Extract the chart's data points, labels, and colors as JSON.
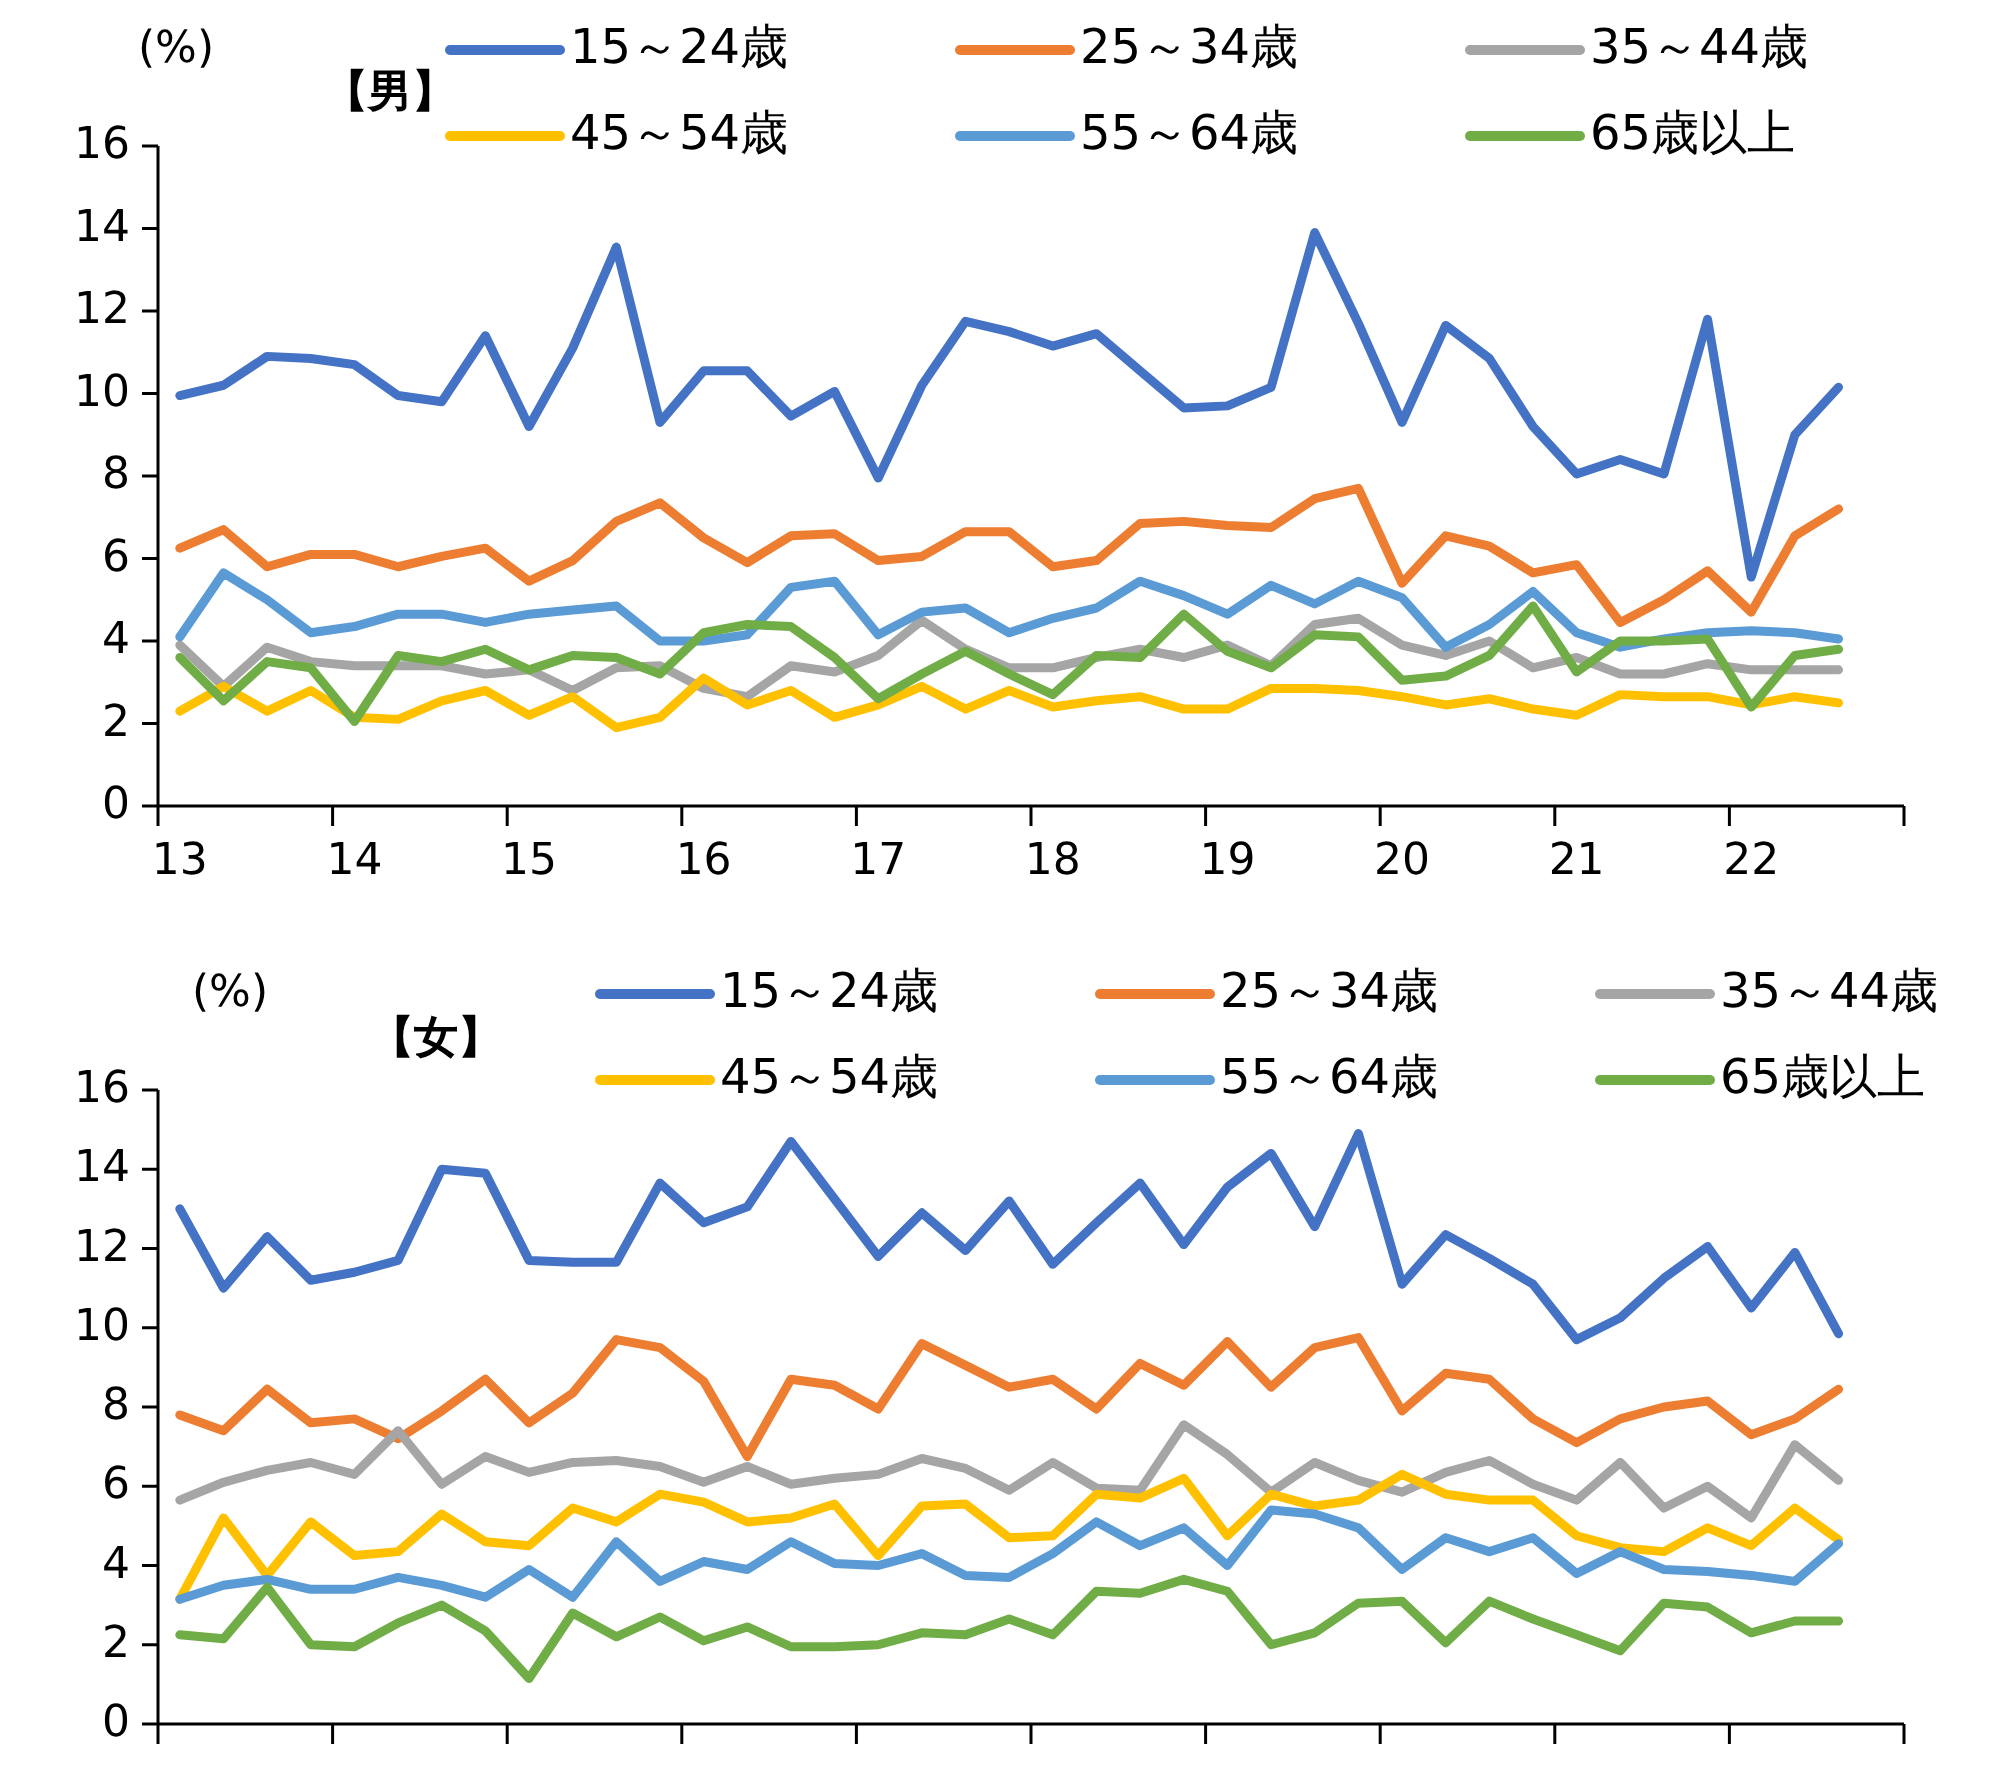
{
  "chart_data": [
    {
      "type": "line",
      "title": "【男】",
      "ylabel": "(%)",
      "legend": "top",
      "grid": false,
      "marker": "none",
      "line_style": "solid",
      "categories": [
        "13",
        null,
        null,
        null,
        "14",
        null,
        null,
        null,
        "15",
        null,
        null,
        null,
        "16",
        null,
        null,
        null,
        "17",
        null,
        null,
        null,
        "18",
        null,
        null,
        null,
        "19",
        null,
        null,
        null,
        "20",
        null,
        null,
        null,
        "21",
        null,
        null,
        null,
        "22",
        null,
        null,
        null
      ],
      "ylim": [
        0,
        16
      ],
      "yticks": [
        0,
        2,
        4,
        6,
        8,
        10,
        12,
        14,
        16
      ],
      "series": [
        {
          "name": "15～24歳",
          "color": "#4472c4",
          "values": [
            9.95,
            10.2,
            10.9,
            10.85,
            10.7,
            9.95,
            9.8,
            11.4,
            9.2,
            11.1,
            13.55,
            9.3,
            10.55,
            10.55,
            9.45,
            10.05,
            7.95,
            10.2,
            11.75,
            11.5,
            11.15,
            11.45,
            10.55,
            9.65,
            9.7,
            10.15,
            13.9,
            11.7,
            9.3,
            11.65,
            10.85,
            9.2,
            8.05,
            8.4,
            8.05,
            11.8,
            5.55,
            9.0,
            10.15,
            null
          ]
        },
        {
          "name": "25～34歳",
          "color": "#ed7d31",
          "values": [
            6.25,
            6.7,
            5.8,
            6.1,
            6.1,
            5.8,
            6.05,
            6.25,
            5.45,
            5.95,
            6.9,
            7.35,
            6.5,
            5.9,
            6.55,
            6.6,
            5.95,
            6.05,
            6.65,
            6.65,
            5.8,
            5.95,
            6.85,
            6.9,
            6.8,
            6.75,
            7.45,
            7.7,
            5.4,
            6.55,
            6.3,
            5.65,
            5.85,
            4.45,
            5.0,
            5.7,
            4.7,
            6.55,
            7.2,
            null
          ]
        },
        {
          "name": "35～44歳",
          "color": "#a5a5a5",
          "values": [
            3.9,
            2.9,
            3.85,
            3.5,
            3.4,
            3.4,
            3.4,
            3.2,
            3.3,
            2.8,
            3.35,
            3.4,
            2.85,
            2.65,
            3.4,
            3.25,
            3.65,
            4.5,
            3.8,
            3.35,
            3.35,
            3.6,
            3.8,
            3.6,
            3.9,
            3.4,
            4.4,
            4.55,
            3.9,
            3.65,
            4.0,
            3.35,
            3.6,
            3.2,
            3.2,
            3.45,
            3.3,
            3.3,
            3.3,
            null
          ]
        },
        {
          "name": "45～54歳",
          "color": "#ffc000",
          "values": [
            2.3,
            2.9,
            2.3,
            2.8,
            2.15,
            2.1,
            2.55,
            2.8,
            2.2,
            2.65,
            1.9,
            2.15,
            3.1,
            2.45,
            2.8,
            2.15,
            2.45,
            2.9,
            2.35,
            2.8,
            2.4,
            2.55,
            2.65,
            2.35,
            2.35,
            2.85,
            2.85,
            2.8,
            2.65,
            2.45,
            2.6,
            2.35,
            2.2,
            2.7,
            2.65,
            2.65,
            2.45,
            2.65,
            2.5,
            null
          ]
        },
        {
          "name": "55～64歳",
          "color": "#5b9bd5",
          "values": [
            4.1,
            5.65,
            5.0,
            4.2,
            4.35,
            4.65,
            4.65,
            4.45,
            4.65,
            4.75,
            4.85,
            4.0,
            4.0,
            4.15,
            5.3,
            5.45,
            4.15,
            4.7,
            4.8,
            4.2,
            4.55,
            4.8,
            5.45,
            5.1,
            4.65,
            5.35,
            4.9,
            5.45,
            5.05,
            3.85,
            4.4,
            5.2,
            4.2,
            3.85,
            4.05,
            4.2,
            4.25,
            4.2,
            4.05,
            null
          ]
        },
        {
          "name": "65歳以上",
          "color": "#70ad47",
          "values": [
            3.6,
            2.55,
            3.5,
            3.35,
            2.05,
            3.65,
            3.5,
            3.8,
            3.3,
            3.65,
            3.6,
            3.2,
            4.2,
            4.4,
            4.35,
            3.6,
            2.6,
            3.2,
            3.75,
            3.2,
            2.7,
            3.65,
            3.6,
            4.65,
            3.75,
            3.35,
            4.15,
            4.1,
            3.05,
            3.15,
            3.65,
            4.85,
            3.25,
            4.0,
            4.0,
            4.05,
            2.4,
            3.65,
            3.8,
            null
          ]
        }
      ]
    },
    {
      "type": "line",
      "title": "【女】",
      "ylabel": "(%)",
      "legend": "top",
      "grid": false,
      "marker": "none",
      "line_style": "solid",
      "tick_labels": "y",
      "categories": [
        null,
        null,
        null,
        null,
        null,
        null,
        null,
        null,
        null,
        null,
        null,
        null,
        null,
        null,
        null,
        null,
        null,
        null,
        null,
        null,
        null,
        null,
        null,
        null,
        null,
        null,
        null,
        null,
        null,
        null,
        null,
        null,
        null,
        null,
        null,
        null,
        null,
        null,
        null,
        null
      ],
      "ylim": [
        0,
        16
      ],
      "yticks": [
        0,
        2,
        4,
        6,
        8,
        10,
        12,
        14,
        16
      ],
      "series": [
        {
          "name": "15～24歳",
          "color": "#4472c4",
          "values": [
            13.0,
            11.0,
            12.3,
            11.2,
            11.4,
            11.7,
            14.0,
            13.9,
            11.7,
            11.65,
            11.65,
            13.65,
            12.65,
            13.05,
            14.7,
            13.25,
            11.8,
            12.9,
            11.95,
            13.2,
            11.6,
            12.65,
            13.65,
            12.1,
            13.55,
            14.4,
            12.55,
            14.9,
            11.1,
            12.35,
            11.75,
            11.1,
            9.7,
            10.25,
            11.25,
            12.05,
            10.5,
            11.9,
            9.85,
            null
          ]
        },
        {
          "name": "25～34歳",
          "color": "#ed7d31",
          "values": [
            7.8,
            7.4,
            8.45,
            7.6,
            7.7,
            7.2,
            7.9,
            8.7,
            7.6,
            8.35,
            9.7,
            9.5,
            8.65,
            6.75,
            8.7,
            8.55,
            7.95,
            9.6,
            9.05,
            8.5,
            8.7,
            7.95,
            9.1,
            8.55,
            9.65,
            8.5,
            9.5,
            9.75,
            7.9,
            8.85,
            8.7,
            7.7,
            7.1,
            7.7,
            8.0,
            8.15,
            7.3,
            7.7,
            8.45,
            null
          ]
        },
        {
          "name": "35～44歳",
          "color": "#a5a5a5",
          "values": [
            5.65,
            6.1,
            6.4,
            6.6,
            6.3,
            7.4,
            6.05,
            6.75,
            6.35,
            6.6,
            6.65,
            6.5,
            6.1,
            6.5,
            6.05,
            6.2,
            6.3,
            6.7,
            6.45,
            5.9,
            6.6,
            5.95,
            5.9,
            7.55,
            6.8,
            5.85,
            6.6,
            6.15,
            5.85,
            6.35,
            6.65,
            6.05,
            5.65,
            6.6,
            5.45,
            6.0,
            5.2,
            7.05,
            6.15,
            null
          ]
        },
        {
          "name": "45～54歳",
          "color": "#ffc000",
          "values": [
            3.15,
            5.2,
            3.75,
            5.1,
            4.25,
            4.35,
            5.3,
            4.6,
            4.5,
            5.45,
            5.1,
            5.8,
            5.6,
            5.1,
            5.2,
            5.55,
            4.25,
            5.5,
            5.55,
            4.7,
            4.75,
            5.8,
            5.7,
            6.2,
            4.75,
            5.8,
            5.5,
            5.65,
            6.3,
            5.8,
            5.65,
            5.65,
            4.75,
            4.45,
            4.35,
            4.95,
            4.5,
            5.45,
            4.65,
            null
          ]
        },
        {
          "name": "55～64歳",
          "color": "#5b9bd5",
          "values": [
            3.15,
            3.5,
            3.65,
            3.4,
            3.4,
            3.7,
            3.5,
            3.2,
            3.9,
            3.2,
            4.6,
            3.6,
            4.1,
            3.9,
            4.6,
            4.05,
            4.0,
            4.3,
            3.75,
            3.7,
            4.3,
            5.1,
            4.5,
            4.95,
            4.0,
            5.4,
            5.3,
            4.95,
            3.9,
            4.7,
            4.35,
            4.7,
            3.8,
            4.35,
            3.9,
            3.85,
            3.75,
            3.6,
            4.55,
            null
          ]
        },
        {
          "name": "65歳以上",
          "color": "#70ad47",
          "values": [
            2.25,
            2.15,
            3.45,
            2.0,
            1.95,
            2.55,
            3.0,
            2.35,
            1.15,
            2.8,
            2.2,
            2.7,
            2.1,
            2.45,
            1.95,
            1.95,
            2.0,
            2.3,
            2.25,
            2.65,
            2.25,
            3.35,
            3.3,
            3.65,
            3.35,
            2.0,
            2.3,
            3.05,
            3.1,
            2.05,
            3.1,
            2.65,
            2.25,
            1.85,
            3.05,
            2.95,
            2.3,
            2.6,
            2.6,
            null
          ]
        }
      ]
    }
  ]
}
